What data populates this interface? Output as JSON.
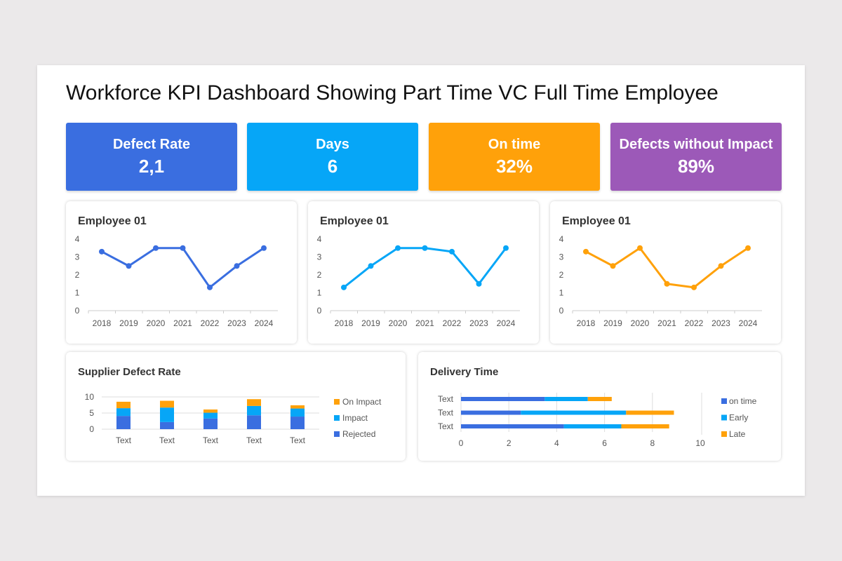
{
  "title": "Workforce KPI Dashboard Showing Part Time VC Full Time Employee",
  "colors": {
    "blue": "#3a6ee0",
    "light_blue": "#06a6f7",
    "orange": "#ffa10a",
    "purple": "#9c59b8"
  },
  "kpis": [
    {
      "label": "Defect Rate",
      "value": "2,1",
      "color": "#3a6ee0"
    },
    {
      "label": "Days",
      "value": "6",
      "color": "#06a6f7"
    },
    {
      "label": "On time",
      "value": "32%",
      "color": "#ffa10a"
    },
    {
      "label": "Defects without Impact",
      "value": "89%",
      "color": "#9c59b8"
    }
  ],
  "chart_data": [
    {
      "type": "line",
      "title": "Employee 01",
      "categories": [
        "2018",
        "2019",
        "2020",
        "2021",
        "2022",
        "2023",
        "2024"
      ],
      "values": [
        3.3,
        2.5,
        3.5,
        3.5,
        1.3,
        2.5,
        3.5
      ],
      "ylim": [
        0,
        4
      ],
      "yticks": [
        "0",
        "1",
        "2",
        "3",
        "4"
      ],
      "color": "#3a6ee0"
    },
    {
      "type": "line",
      "title": "Employee 01",
      "categories": [
        "2018",
        "2019",
        "2020",
        "2021",
        "2022",
        "2023",
        "2024"
      ],
      "values": [
        1.3,
        2.5,
        3.5,
        3.5,
        3.3,
        1.5,
        3.5
      ],
      "ylim": [
        0,
        4
      ],
      "yticks": [
        "0",
        "1",
        "2",
        "3",
        "4"
      ],
      "color": "#06a6f7"
    },
    {
      "type": "line",
      "title": "Employee 01",
      "categories": [
        "2018",
        "2019",
        "2020",
        "2021",
        "2022",
        "2023",
        "2024"
      ],
      "values": [
        3.3,
        2.5,
        3.5,
        1.5,
        1.3,
        2.5,
        3.5
      ],
      "ylim": [
        0,
        4
      ],
      "yticks": [
        "0",
        "1",
        "2",
        "3",
        "4"
      ],
      "color": "#ffa10a"
    },
    {
      "type": "bar",
      "stacked": true,
      "title": "Supplier Defect Rate",
      "categories": [
        "Text",
        "Text",
        "Text",
        "Text",
        "Text"
      ],
      "ylim": [
        0,
        10
      ],
      "yticks": [
        "0",
        "5",
        "10"
      ],
      "legend": "right",
      "series": [
        {
          "name": "Rejected",
          "values": [
            4.1,
            2.2,
            3.3,
            4.3,
            3.9
          ],
          "color": "#3a6ee0"
        },
        {
          "name": "Impact",
          "values": [
            2.4,
            4.5,
            1.8,
            2.9,
            2.5
          ],
          "color": "#06a6f7"
        },
        {
          "name": "On Impact",
          "values": [
            2.0,
            2.1,
            1.0,
            2.1,
            1.0
          ],
          "color": "#ffa10a"
        }
      ]
    },
    {
      "type": "bar",
      "orientation": "horizontal",
      "stacked": true,
      "title": "Delivery Time",
      "categories": [
        "Text",
        "Text",
        "Text"
      ],
      "xlim": [
        0,
        10
      ],
      "xticks": [
        "0",
        "2",
        "4",
        "6",
        "8",
        "10"
      ],
      "legend": "right",
      "series": [
        {
          "name": "on time",
          "values": [
            3.5,
            2.5,
            4.3
          ],
          "color": "#3a6ee0"
        },
        {
          "name": "Early",
          "values": [
            1.8,
            4.4,
            2.4
          ],
          "color": "#06a6f7"
        },
        {
          "name": "Late",
          "values": [
            1.0,
            2.0,
            2.0
          ],
          "color": "#ffa10a"
        }
      ]
    }
  ]
}
